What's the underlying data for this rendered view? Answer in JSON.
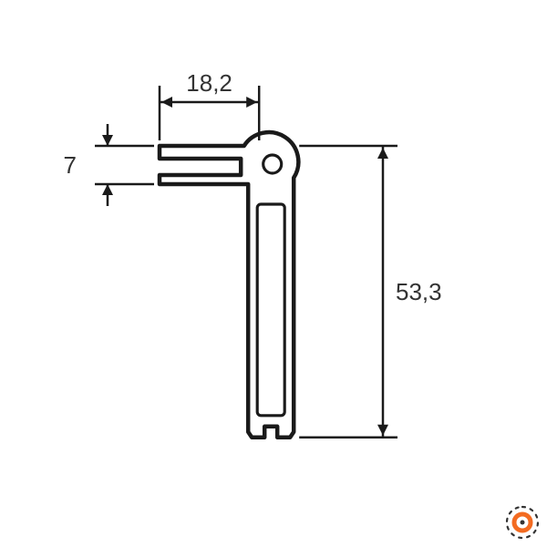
{
  "drawing": {
    "type": "technical-profile",
    "background_color": "#ffffff",
    "stroke_color": "#1a1a1a",
    "text_color": "#333333",
    "profile_stroke_width": 4.5,
    "dim_stroke_width": 2.5,
    "font_size_pt": 20
  },
  "dimensions": {
    "width_label": "18,2",
    "slot_label": "7",
    "height_label": "53,3"
  },
  "logo": {
    "outer_color": "#333333",
    "inner_color": "#f36b21"
  }
}
